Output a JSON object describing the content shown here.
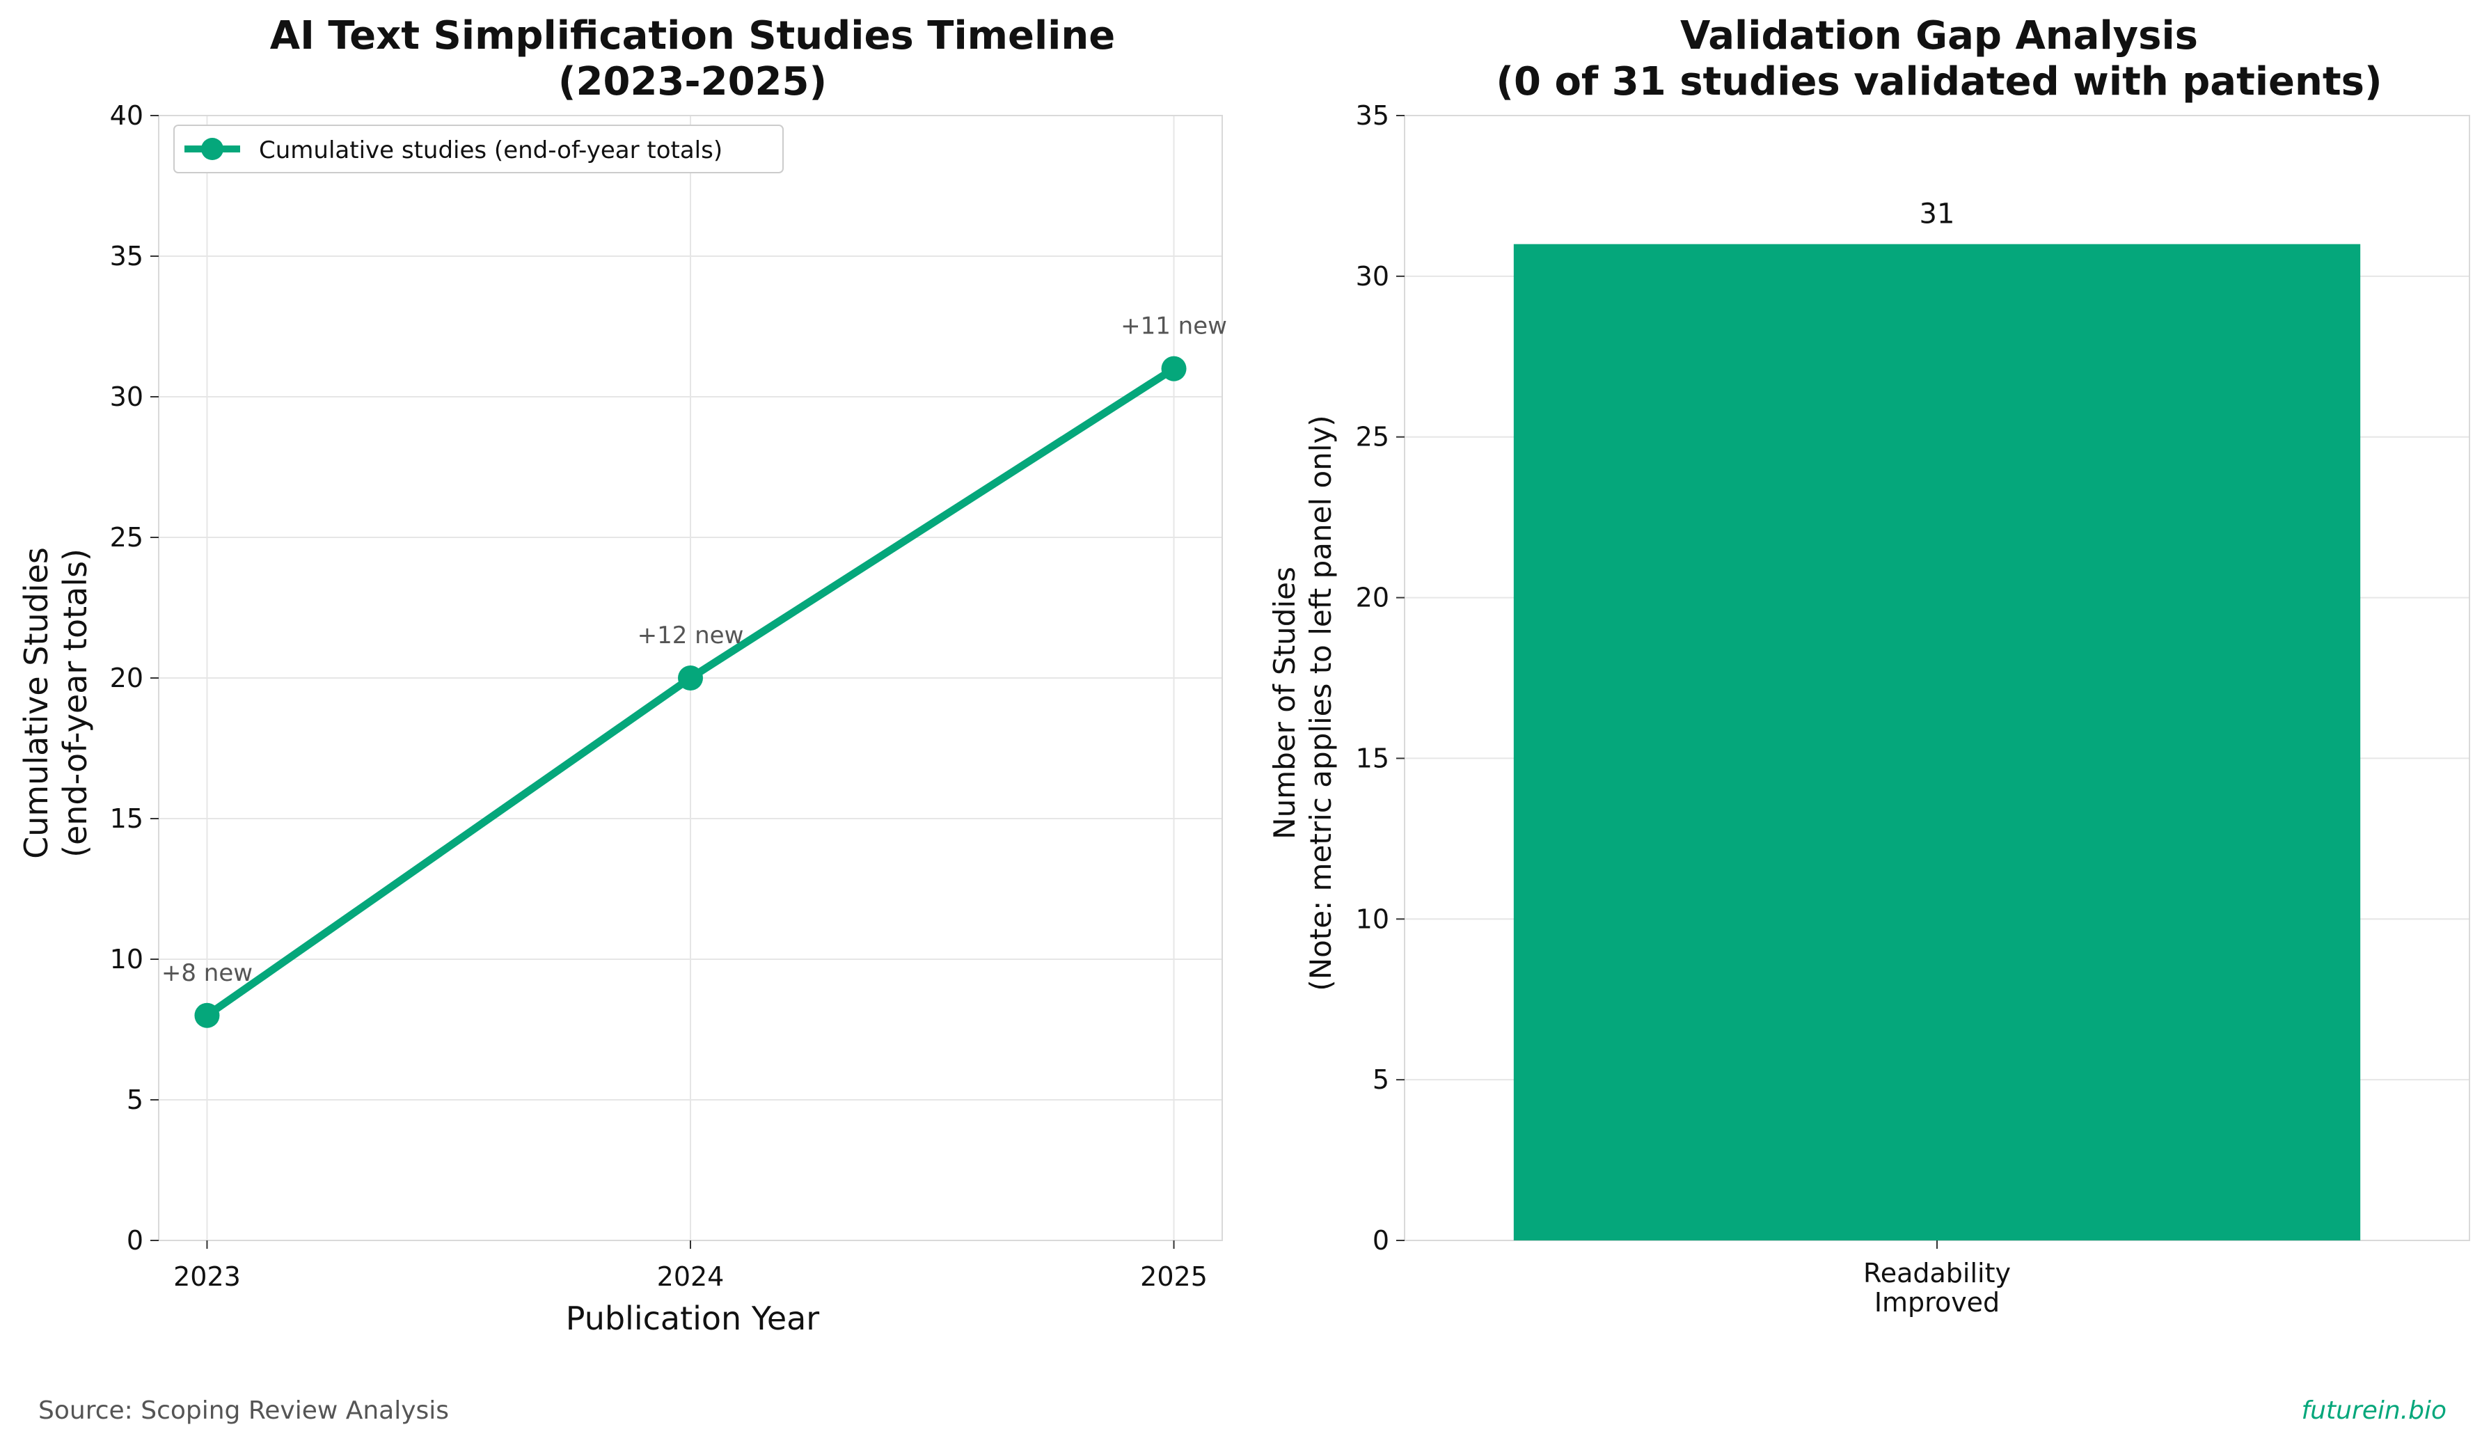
{
  "colors": {
    "accent": "#05a77b",
    "grid": "#e6e6e6",
    "spine": "#d9d9d9",
    "text": "#111111",
    "annot": "#555555",
    "footer": "#555555"
  },
  "footer": {
    "source": "Source: Scoping Review Analysis",
    "brand": "futurein.bio"
  },
  "chart_data": [
    {
      "type": "line",
      "title_lines": [
        "AI Text Simplification Studies Timeline",
        "(2023-2025)"
      ],
      "xlabel": "Publication Year",
      "ylabel_lines": [
        "Cumulative Studies",
        "(end-of-year totals)"
      ],
      "x": [
        2023,
        2024,
        2025
      ],
      "x_tick_labels": [
        "2023",
        "2024",
        "2025"
      ],
      "xlim": [
        2022.9,
        2025.1
      ],
      "ylim": [
        0,
        40
      ],
      "y_ticks": [
        0,
        5,
        10,
        15,
        20,
        25,
        30,
        35,
        40
      ],
      "grid": true,
      "legend": "top-left",
      "series": [
        {
          "name": "Cumulative studies (end-of-year totals)",
          "values": [
            8,
            20,
            31
          ]
        }
      ],
      "annotations": [
        "+8 new",
        "+12 new",
        "+11 new"
      ]
    },
    {
      "type": "bar",
      "title_lines": [
        "Validation Gap Analysis",
        "(0 of 31 studies validated with patients)"
      ],
      "ylabel_lines": [
        "Number of Studies",
        "(Note: metric applies to left panel only)"
      ],
      "categories": [
        [
          "Readability",
          "Improved"
        ]
      ],
      "values": [
        31
      ],
      "data_labels": [
        "31"
      ],
      "ylim": [
        0,
        35
      ],
      "y_ticks": [
        0,
        5,
        10,
        15,
        20,
        25,
        30,
        35
      ],
      "grid": true
    }
  ]
}
